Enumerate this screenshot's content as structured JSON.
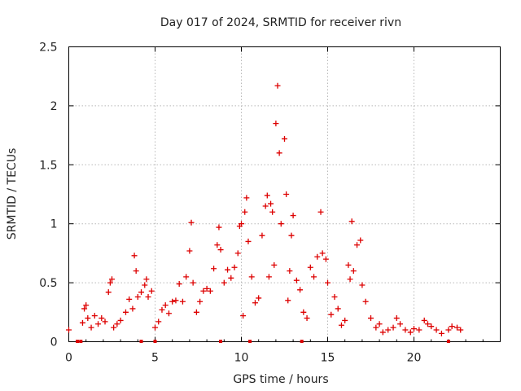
{
  "chart_data": {
    "type": "scatter",
    "title": "Day 017 of 2024, SRMTID for receiver rivn",
    "xlabel": "GPS time / hours",
    "ylabel": "SRMTID / TECUs",
    "xlim": [
      0,
      25
    ],
    "ylim": [
      0,
      2.5
    ],
    "x_ticks": [
      0,
      5,
      10,
      15,
      20
    ],
    "x_tick_labels": [
      "0",
      "5",
      "10",
      "15",
      "20"
    ],
    "y_ticks": [
      0,
      0.5,
      1,
      1.5,
      2,
      2.5
    ],
    "y_tick_labels": [
      "0",
      "0.5",
      "1",
      "1.5",
      "2",
      "2.5"
    ],
    "grid": true,
    "legend": "none",
    "marker": "+",
    "color": "#dd0000",
    "series": [
      {
        "name": "SRMTID",
        "points": [
          [
            0.0,
            0.1
          ],
          [
            0.8,
            0.16
          ],
          [
            0.9,
            0.28
          ],
          [
            1.0,
            0.31
          ],
          [
            1.1,
            0.2
          ],
          [
            1.3,
            0.12
          ],
          [
            1.5,
            0.22
          ],
          [
            1.7,
            0.15
          ],
          [
            1.9,
            0.2
          ],
          [
            2.1,
            0.17
          ],
          [
            2.3,
            0.42
          ],
          [
            2.4,
            0.5
          ],
          [
            2.5,
            0.53
          ],
          [
            2.6,
            0.12
          ],
          [
            2.8,
            0.15
          ],
          [
            3.0,
            0.18
          ],
          [
            3.3,
            0.25
          ],
          [
            3.5,
            0.36
          ],
          [
            3.7,
            0.28
          ],
          [
            3.8,
            0.73
          ],
          [
            3.9,
            0.6
          ],
          [
            4.0,
            0.38
          ],
          [
            4.2,
            0.42
          ],
          [
            4.4,
            0.48
          ],
          [
            4.5,
            0.53
          ],
          [
            4.6,
            0.38
          ],
          [
            4.8,
            0.43
          ],
          [
            5.0,
            0.12
          ],
          [
            5.2,
            0.17
          ],
          [
            5.4,
            0.27
          ],
          [
            5.6,
            0.31
          ],
          [
            5.8,
            0.24
          ],
          [
            6.0,
            0.34
          ],
          [
            6.2,
            0.35
          ],
          [
            6.4,
            0.49
          ],
          [
            6.6,
            0.34
          ],
          [
            6.8,
            0.55
          ],
          [
            7.0,
            0.77
          ],
          [
            7.1,
            1.01
          ],
          [
            7.2,
            0.5
          ],
          [
            7.4,
            0.25
          ],
          [
            7.6,
            0.34
          ],
          [
            7.8,
            0.43
          ],
          [
            8.0,
            0.45
          ],
          [
            8.2,
            0.43
          ],
          [
            8.4,
            0.62
          ],
          [
            8.6,
            0.82
          ],
          [
            8.7,
            0.97
          ],
          [
            8.8,
            0.78
          ],
          [
            9.0,
            0.5
          ],
          [
            9.2,
            0.61
          ],
          [
            9.4,
            0.54
          ],
          [
            9.6,
            0.63
          ],
          [
            9.8,
            0.75
          ],
          [
            9.9,
            0.98
          ],
          [
            10.0,
            1.0
          ],
          [
            10.1,
            0.22
          ],
          [
            10.2,
            1.1
          ],
          [
            10.3,
            1.22
          ],
          [
            10.4,
            0.85
          ],
          [
            10.6,
            0.55
          ],
          [
            10.8,
            0.33
          ],
          [
            11.0,
            0.37
          ],
          [
            11.2,
            0.9
          ],
          [
            11.4,
            1.15
          ],
          [
            11.5,
            1.24
          ],
          [
            11.6,
            0.55
          ],
          [
            11.7,
            1.17
          ],
          [
            11.8,
            1.1
          ],
          [
            11.9,
            0.65
          ],
          [
            12.0,
            1.85
          ],
          [
            12.1,
            2.17
          ],
          [
            12.2,
            1.6
          ],
          [
            12.3,
            1.0
          ],
          [
            12.5,
            1.72
          ],
          [
            12.6,
            1.25
          ],
          [
            12.7,
            0.35
          ],
          [
            12.8,
            0.6
          ],
          [
            12.9,
            0.9
          ],
          [
            13.0,
            1.07
          ],
          [
            13.2,
            0.52
          ],
          [
            13.4,
            0.44
          ],
          [
            13.6,
            0.25
          ],
          [
            13.8,
            0.2
          ],
          [
            14.0,
            0.63
          ],
          [
            14.2,
            0.55
          ],
          [
            14.4,
            0.72
          ],
          [
            14.6,
            1.1
          ],
          [
            14.7,
            0.75
          ],
          [
            14.9,
            0.7
          ],
          [
            15.0,
            0.5
          ],
          [
            15.2,
            0.23
          ],
          [
            15.4,
            0.38
          ],
          [
            15.6,
            0.28
          ],
          [
            15.8,
            0.14
          ],
          [
            16.0,
            0.18
          ],
          [
            16.2,
            0.65
          ],
          [
            16.3,
            0.53
          ],
          [
            16.4,
            1.02
          ],
          [
            16.5,
            0.6
          ],
          [
            16.7,
            0.82
          ],
          [
            16.9,
            0.86
          ],
          [
            17.0,
            0.48
          ],
          [
            17.2,
            0.34
          ],
          [
            17.5,
            0.2
          ],
          [
            17.8,
            0.12
          ],
          [
            18.0,
            0.15
          ],
          [
            18.2,
            0.08
          ],
          [
            18.5,
            0.1
          ],
          [
            18.8,
            0.12
          ],
          [
            19.0,
            0.2
          ],
          [
            19.2,
            0.15
          ],
          [
            19.5,
            0.1
          ],
          [
            19.8,
            0.08
          ],
          [
            20.0,
            0.11
          ],
          [
            20.3,
            0.1
          ],
          [
            20.6,
            0.18
          ],
          [
            20.8,
            0.15
          ],
          [
            21.0,
            0.13
          ],
          [
            21.3,
            0.1
          ],
          [
            21.6,
            0.07
          ],
          [
            22.0,
            0.1
          ],
          [
            22.2,
            0.13
          ],
          [
            22.5,
            0.12
          ],
          [
            22.7,
            0.1
          ]
        ]
      }
    ],
    "baseline_markers_x": [
      0.5,
      0.7,
      4.2,
      5.0,
      8.8,
      10.5,
      13.5,
      22.0
    ]
  }
}
